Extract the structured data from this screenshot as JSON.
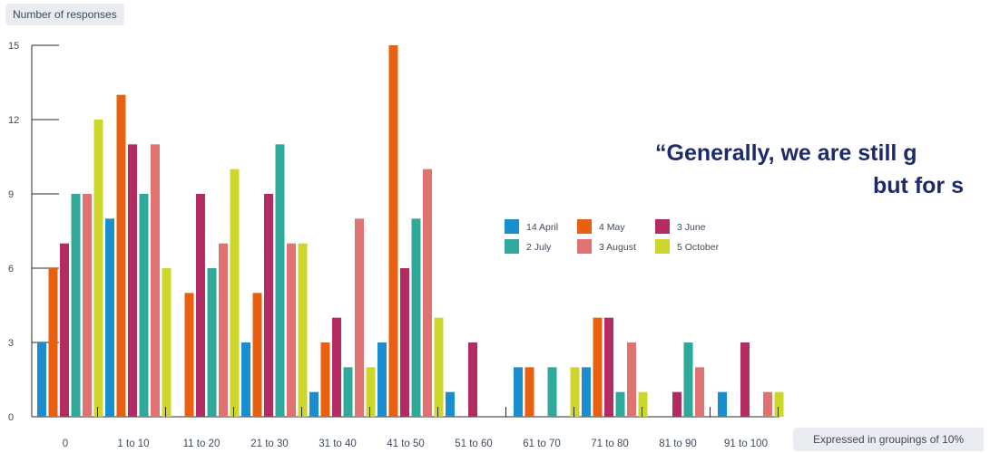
{
  "ylabel_tag": "Number of responses",
  "xnote_tag": "Expressed in groupings of 10%",
  "quote_line1": "“Generally, we are still g",
  "quote_line2": "but for s",
  "colors": {
    "axis": "#2b2b2b",
    "text": "#3e4a5c",
    "quote": "#1d2a6b",
    "tag_bg": "#e9ecf1"
  },
  "chart_data": {
    "type": "bar",
    "ylabel": "Number of responses",
    "xlabel": "Expressed in groupings of 10%",
    "ylim": [
      0,
      15
    ],
    "yticks": [
      0,
      3,
      6,
      9,
      12,
      15
    ],
    "grid": false,
    "legend_position": "center-right",
    "categories": [
      "0",
      "1 to 10",
      "11 to 20",
      "21 to 30",
      "31 to 40",
      "41 to 50",
      "51 to 60",
      "61 to 70",
      "71 to 80",
      "81 to 90",
      "91 to 100"
    ],
    "series": [
      {
        "name": "14 April",
        "color": "#1a8fd0",
        "values": [
          3,
          8,
          0,
          3,
          1,
          3,
          1,
          2,
          2,
          0,
          1
        ]
      },
      {
        "name": "4 May",
        "color": "#e8600f",
        "values": [
          6,
          13,
          5,
          5,
          3,
          15,
          0,
          2,
          4,
          0,
          0
        ]
      },
      {
        "name": "3 June",
        "color": "#b42a63",
        "values": [
          7,
          11,
          9,
          9,
          4,
          6,
          3,
          0,
          4,
          1,
          3
        ]
      },
      {
        "name": "2 July",
        "color": "#2ea99a",
        "values": [
          9,
          9,
          6,
          11,
          2,
          8,
          0,
          2,
          1,
          3,
          0
        ]
      },
      {
        "name": "3 August",
        "color": "#e07272",
        "values": [
          9,
          11,
          7,
          7,
          8,
          10,
          0,
          0,
          3,
          2,
          1
        ]
      },
      {
        "name": "5 October",
        "color": "#cdd62b",
        "values": [
          12,
          6,
          10,
          7,
          2,
          4,
          0,
          2,
          1,
          0,
          1
        ]
      }
    ]
  }
}
